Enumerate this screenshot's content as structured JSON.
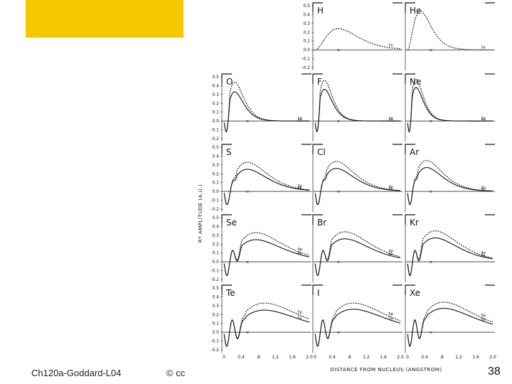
{
  "slide": {
    "footer_left": "Ch120a-Goddard-L04",
    "footer_mid": "© cc",
    "page_number": "38",
    "accent_color": "#f5c800"
  },
  "figure": {
    "y_axis_title": "R* AMPLITUDE (A.U.)",
    "x_axis_title": "DISTANCE FROM NUCLEUS (ANGSTROM)",
    "x_tick_labels": [
      "0",
      "0.4",
      ".8",
      "1.2",
      "1.6",
      "2.0"
    ],
    "top_y_ticks": [
      "0.5",
      "0.4",
      "0.3",
      "0.2",
      "0.1",
      "0.0",
      "-0.1",
      "-0.2"
    ],
    "grid_y_ticks": [
      "0.5",
      "0.4",
      "0.3",
      "0.2",
      "0.1",
      "0.0",
      "-0.1",
      "-0.2"
    ]
  },
  "chart_data": {
    "type": "line",
    "title": "",
    "xlabel": "DISTANCE FROM NUCLEUS (ANGSTROM)",
    "ylabel": "R* AMPLITUDE (A.U.)",
    "xlim": [
      0,
      2.0
    ],
    "ylim": [
      -0.2,
      0.5
    ],
    "panels": [
      {
        "element": "H",
        "labels": [
          "1s"
        ],
        "node_count": 0,
        "peak_x": 0.55,
        "peak_y": 0.24,
        "outer_peak_y": null
      },
      {
        "element": "He",
        "labels": [
          "1s"
        ],
        "node_count": 0,
        "peak_x": 0.3,
        "peak_y": 0.44,
        "outer_peak_y": null
      },
      {
        "element": "O",
        "labels": [
          "2p",
          "2s"
        ],
        "node_count": 1,
        "peak_x": 0.25,
        "peak_y": 0.33,
        "outer_peak_y": 0.44
      },
      {
        "element": "F",
        "labels": [
          "2p",
          "2s"
        ],
        "node_count": 1,
        "peak_x": 0.22,
        "peak_y": 0.36,
        "outer_peak_y": 0.46
      },
      {
        "element": "Ne",
        "labels": [
          "2p",
          "2s"
        ],
        "node_count": 1,
        "peak_x": 0.2,
        "peak_y": 0.38,
        "outer_peak_y": 0.47
      },
      {
        "element": "S",
        "labels": [
          "3p",
          "3s"
        ],
        "node_count": 2,
        "peak_x": 0.55,
        "peak_y": 0.25,
        "outer_peak_y": 0.33
      },
      {
        "element": "Cl",
        "labels": [
          "3p",
          "3s"
        ],
        "node_count": 2,
        "peak_x": 0.5,
        "peak_y": 0.26,
        "outer_peak_y": 0.34
      },
      {
        "element": "Ar",
        "labels": [
          "3p",
          "3s"
        ],
        "node_count": 2,
        "peak_x": 0.45,
        "peak_y": 0.27,
        "outer_peak_y": 0.35
      },
      {
        "element": "Se",
        "labels": [
          "4p",
          "4s"
        ],
        "node_count": 3,
        "peak_x": 0.75,
        "peak_y": 0.25,
        "outer_peak_y": 0.33
      },
      {
        "element": "Br",
        "labels": [
          "4p",
          "4s"
        ],
        "node_count": 3,
        "peak_x": 0.7,
        "peak_y": 0.26,
        "outer_peak_y": 0.34
      },
      {
        "element": "Kr",
        "labels": [
          "4p",
          "4s"
        ],
        "node_count": 3,
        "peak_x": 0.65,
        "peak_y": 0.27,
        "outer_peak_y": 0.35
      },
      {
        "element": "Te",
        "labels": [
          "5p",
          "5s"
        ],
        "node_count": 4,
        "peak_x": 0.95,
        "peak_y": 0.25,
        "outer_peak_y": 0.33
      },
      {
        "element": "I",
        "labels": [
          "5p",
          "5s"
        ],
        "node_count": 4,
        "peak_x": 0.9,
        "peak_y": 0.26,
        "outer_peak_y": 0.33
      },
      {
        "element": "Xe",
        "labels": [
          "5p",
          "5s"
        ],
        "node_count": 4,
        "peak_x": 0.85,
        "peak_y": 0.27,
        "outer_peak_y": 0.34
      }
    ]
  }
}
